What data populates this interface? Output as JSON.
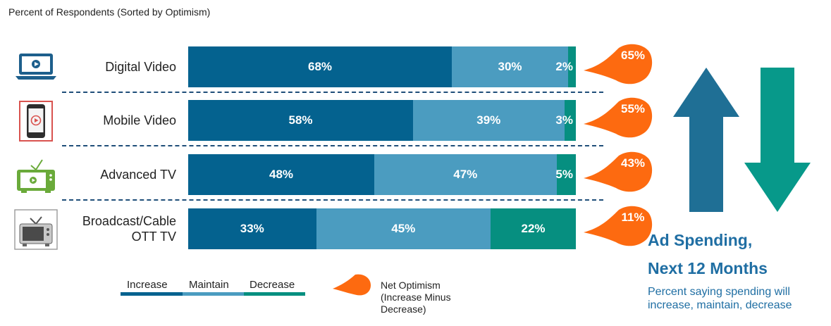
{
  "chart_data": {
    "type": "bar",
    "stacked": "100%",
    "orientation": "horizontal",
    "title": "",
    "subtitle": "Percent of Respondents (Sorted by Optimism)",
    "categories": [
      "Digital Video",
      "Mobile Video",
      "Advanced TV",
      "Broadcast/Cable OTT TV"
    ],
    "category_lines": [
      [
        "Digital Video"
      ],
      [
        "Mobile Video"
      ],
      [
        "Advanced TV"
      ],
      [
        "Broadcast/Cable",
        "OTT TV"
      ]
    ],
    "series": [
      {
        "name": "Increase",
        "values": [
          68,
          58,
          48,
          33
        ],
        "labels": [
          "68%",
          "58%",
          "48%",
          "33%"
        ],
        "color": "#04628f"
      },
      {
        "name": "Maintain",
        "values": [
          30,
          39,
          47,
          45
        ],
        "labels": [
          "30%",
          "39%",
          "47%",
          "45%"
        ],
        "color": "#4b9cc0"
      },
      {
        "name": "Decrease",
        "values": [
          2,
          3,
          5,
          22
        ],
        "labels": [
          "2%",
          "3%",
          "5%",
          "22%"
        ],
        "color": "#068f80"
      }
    ],
    "net_optimism": {
      "name": "Net Optimism (Increase Minus Decrease)",
      "values": [
        65,
        55,
        43,
        11
      ],
      "labels": [
        "65%",
        "55%",
        "43%",
        "11%"
      ],
      "color": "#fd6a10"
    },
    "legend_placement": "bottom",
    "grid": false
  },
  "legend": {
    "net_lines": [
      "Net Optimism",
      "(Increase Minus",
      "Decrease)"
    ]
  },
  "summary": {
    "title_line1": "Ad Spending,",
    "title_line2": "Next 12 Months",
    "subtitle_line1": "Percent saying spending will",
    "subtitle_line2": "increase, maintain, decrease",
    "arrow_up_color": "#1f6f95",
    "arrow_down_color": "#07998a"
  },
  "icons": [
    "laptop-video-icon",
    "mobile-phone-video-icon",
    "advanced-tv-icon",
    "broadcast-tv-icon"
  ]
}
